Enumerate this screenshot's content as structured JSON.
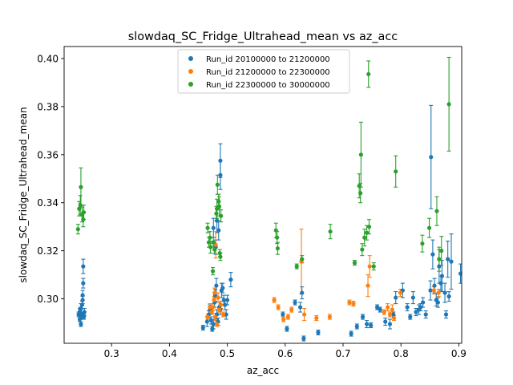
{
  "chart_data": {
    "type": "scatter",
    "title": "slowdaq_SC_Fridge_Ultrahead_mean vs az_acc",
    "xlabel": "az_acc",
    "ylabel": "slowdaq_SC_Fridge_Ultrahead_mean",
    "xlim": [
      0.218,
      0.905
    ],
    "ylim": [
      0.2815,
      0.405
    ],
    "xticks": [
      0.3,
      0.4,
      0.5,
      0.6,
      0.7,
      0.8,
      0.9
    ],
    "xtick_labels": [
      "0.3",
      "0.4",
      "0.5",
      "0.6",
      "0.7",
      "0.8",
      "0.9"
    ],
    "yticks": [
      0.3,
      0.32,
      0.34,
      0.36,
      0.38,
      0.4
    ],
    "ytick_labels": [
      "0.30",
      "0.32",
      "0.34",
      "0.36",
      "0.38",
      "0.40"
    ],
    "grid": false,
    "legend_placement": "top-center",
    "series": [
      {
        "name": "Run_id 20100000 to 21200000",
        "color": "#1f77b4",
        "points": [
          [
            0.243,
            0.2935,
            0.001
          ],
          [
            0.245,
            0.2945,
            0.0015
          ],
          [
            0.246,
            0.2955,
            0.001
          ],
          [
            0.247,
            0.296,
            0.002
          ],
          [
            0.248,
            0.2925,
            0.001
          ],
          [
            0.249,
            0.2935,
            0.001
          ],
          [
            0.249,
            0.2975,
            0.0015
          ],
          [
            0.25,
            0.2995,
            0.0015
          ],
          [
            0.25,
            0.3015,
            0.002
          ],
          [
            0.251,
            0.2935,
            0.001
          ],
          [
            0.247,
            0.2895,
            0.001
          ],
          [
            0.251,
            0.3065,
            0.002
          ],
          [
            0.251,
            0.3135,
            0.003
          ],
          [
            0.245,
            0.2915,
            0.001
          ],
          [
            0.252,
            0.2925,
            0.001
          ],
          [
            0.253,
            0.2945,
            0.0015
          ],
          [
            0.458,
            0.288,
            0.001
          ],
          [
            0.465,
            0.2905,
            0.002
          ],
          [
            0.468,
            0.2935,
            0.0015
          ],
          [
            0.47,
            0.2955,
            0.002
          ],
          [
            0.472,
            0.291,
            0.0015
          ],
          [
            0.474,
            0.2875,
            0.001
          ],
          [
            0.476,
            0.2895,
            0.002
          ],
          [
            0.478,
            0.2985,
            0.002
          ],
          [
            0.479,
            0.3015,
            0.0025
          ],
          [
            0.481,
            0.3055,
            0.003
          ],
          [
            0.482,
            0.2935,
            0.002
          ],
          [
            0.484,
            0.2905,
            0.0015
          ],
          [
            0.486,
            0.2965,
            0.002
          ],
          [
            0.488,
            0.2955,
            0.002
          ],
          [
            0.49,
            0.3035,
            0.003
          ],
          [
            0.492,
            0.3045,
            0.002
          ],
          [
            0.494,
            0.2995,
            0.002
          ],
          [
            0.496,
            0.2975,
            0.002
          ],
          [
            0.498,
            0.2935,
            0.002
          ],
          [
            0.485,
            0.3285,
            0.004
          ],
          [
            0.482,
            0.3325,
            0.005
          ],
          [
            0.488,
            0.3575,
            0.007
          ],
          [
            0.488,
            0.3515,
            0.006
          ],
          [
            0.48,
            0.3215,
            0.003
          ],
          [
            0.476,
            0.3295,
            0.004
          ],
          [
            0.506,
            0.308,
            0.003
          ],
          [
            0.5,
            0.2995,
            0.002
          ],
          [
            0.596,
            0.2935,
            0.001
          ],
          [
            0.603,
            0.2875,
            0.001
          ],
          [
            0.617,
            0.2985,
            0.001
          ],
          [
            0.626,
            0.2965,
            0.002
          ],
          [
            0.629,
            0.3025,
            0.0025
          ],
          [
            0.632,
            0.2835,
            0.001
          ],
          [
            0.657,
            0.286,
            0.001
          ],
          [
            0.714,
            0.2855,
            0.001
          ],
          [
            0.724,
            0.2885,
            0.001
          ],
          [
            0.734,
            0.2925,
            0.001
          ],
          [
            0.741,
            0.2895,
            0.0015
          ],
          [
            0.748,
            0.289,
            0.001
          ],
          [
            0.759,
            0.2965,
            0.001
          ],
          [
            0.764,
            0.2955,
            0.001
          ],
          [
            0.773,
            0.2905,
            0.0015
          ],
          [
            0.781,
            0.2895,
            0.002
          ],
          [
            0.787,
            0.2935,
            0.001
          ],
          [
            0.791,
            0.3005,
            0.0025
          ],
          [
            0.803,
            0.3035,
            0.003
          ],
          [
            0.811,
            0.2965,
            0.0015
          ],
          [
            0.816,
            0.2925,
            0.001
          ],
          [
            0.821,
            0.3005,
            0.0025
          ],
          [
            0.826,
            0.2945,
            0.0015
          ],
          [
            0.831,
            0.2955,
            0.002
          ],
          [
            0.834,
            0.2965,
            0.0015
          ],
          [
            0.838,
            0.2985,
            0.002
          ],
          [
            0.843,
            0.2935,
            0.0015
          ],
          [
            0.851,
            0.3035,
            0.004
          ],
          [
            0.852,
            0.359,
            0.0215
          ],
          [
            0.855,
            0.3185,
            0.006
          ],
          [
            0.861,
            0.2995,
            0.0025
          ],
          [
            0.864,
            0.2985,
            0.002
          ],
          [
            0.866,
            0.3135,
            0.007
          ],
          [
            0.871,
            0.3095,
            0.0065
          ],
          [
            0.876,
            0.3025,
            0.004
          ],
          [
            0.878,
            0.2935,
            0.0015
          ],
          [
            0.881,
            0.3165,
            0.0075
          ],
          [
            0.883,
            0.301,
            0.002
          ],
          [
            0.887,
            0.3155,
            0.0115
          ],
          [
            0.903,
            0.3105,
            0.004
          ],
          [
            0.869,
            0.3065,
            0.003
          ],
          [
            0.858,
            0.3055,
            0.003
          ]
        ]
      },
      {
        "name": "Run_id 21200000 to 22300000",
        "color": "#ff7f0e",
        "points": [
          [
            0.466,
            0.2925,
            0.001
          ],
          [
            0.47,
            0.2965,
            0.0015
          ],
          [
            0.473,
            0.2945,
            0.001
          ],
          [
            0.475,
            0.2965,
            0.0015
          ],
          [
            0.477,
            0.2995,
            0.0015
          ],
          [
            0.478,
            0.3025,
            0.002
          ],
          [
            0.48,
            0.3225,
            0.0055
          ],
          [
            0.479,
            0.2925,
            0.0015
          ],
          [
            0.482,
            0.2895,
            0.001
          ],
          [
            0.484,
            0.3005,
            0.002
          ],
          [
            0.486,
            0.2955,
            0.001
          ],
          [
            0.489,
            0.2975,
            0.0015
          ],
          [
            0.493,
            0.2935,
            0.001
          ],
          [
            0.581,
            0.2995,
            0.001
          ],
          [
            0.588,
            0.2965,
            0.001
          ],
          [
            0.597,
            0.2915,
            0.001
          ],
          [
            0.605,
            0.2925,
            0.001
          ],
          [
            0.611,
            0.2955,
            0.001
          ],
          [
            0.628,
            0.3155,
            0.0135
          ],
          [
            0.633,
            0.2935,
            0.0025
          ],
          [
            0.654,
            0.292,
            0.001
          ],
          [
            0.677,
            0.2925,
            0.001
          ],
          [
            0.711,
            0.2985,
            0.001
          ],
          [
            0.718,
            0.298,
            0.001
          ],
          [
            0.743,
            0.3055,
            0.0045
          ],
          [
            0.746,
            0.3135,
            0.0045
          ],
          [
            0.771,
            0.2945,
            0.001
          ],
          [
            0.777,
            0.2965,
            0.0015
          ],
          [
            0.781,
            0.2935,
            0.001
          ],
          [
            0.785,
            0.2955,
            0.002
          ],
          [
            0.788,
            0.292,
            0.001
          ],
          [
            0.799,
            0.3025,
            0.0015
          ],
          [
            0.857,
            0.3035,
            0.0015
          ],
          [
            0.865,
            0.3025,
            0.0015
          ]
        ]
      },
      {
        "name": "Run_id 22300000 to 30000000",
        "color": "#2ca02c",
        "points": [
          [
            0.242,
            0.329,
            0.002
          ],
          [
            0.244,
            0.3375,
            0.003
          ],
          [
            0.246,
            0.339,
            0.004
          ],
          [
            0.247,
            0.3465,
            0.008
          ],
          [
            0.249,
            0.335,
            0.003
          ],
          [
            0.251,
            0.333,
            0.003
          ],
          [
            0.252,
            0.336,
            0.003
          ],
          [
            0.466,
            0.3295,
            0.002
          ],
          [
            0.47,
            0.3255,
            0.0025
          ],
          [
            0.471,
            0.3215,
            0.0025
          ],
          [
            0.475,
            0.3115,
            0.0015
          ],
          [
            0.476,
            0.3235,
            0.002
          ],
          [
            0.478,
            0.3205,
            0.0015
          ],
          [
            0.481,
            0.3355,
            0.003
          ],
          [
            0.482,
            0.3375,
            0.004
          ],
          [
            0.483,
            0.3475,
            0.004
          ],
          [
            0.485,
            0.3405,
            0.003
          ],
          [
            0.486,
            0.3385,
            0.004
          ],
          [
            0.487,
            0.319,
            0.0015
          ],
          [
            0.488,
            0.3175,
            0.0015
          ],
          [
            0.489,
            0.3345,
            0.0025
          ],
          [
            0.468,
            0.3235,
            0.002
          ],
          [
            0.584,
            0.3285,
            0.003
          ],
          [
            0.586,
            0.3255,
            0.0025
          ],
          [
            0.587,
            0.321,
            0.0025
          ],
          [
            0.62,
            0.3135,
            0.001
          ],
          [
            0.629,
            0.3165,
            0.0015
          ],
          [
            0.678,
            0.328,
            0.003
          ],
          [
            0.72,
            0.315,
            0.001
          ],
          [
            0.728,
            0.347,
            0.005
          ],
          [
            0.73,
            0.344,
            0.004
          ],
          [
            0.731,
            0.36,
            0.0135
          ],
          [
            0.733,
            0.3205,
            0.0025
          ],
          [
            0.737,
            0.3255,
            0.0035
          ],
          [
            0.741,
            0.3275,
            0.003
          ],
          [
            0.744,
            0.3935,
            0.0055
          ],
          [
            0.745,
            0.33,
            0.003
          ],
          [
            0.753,
            0.3135,
            0.0015
          ],
          [
            0.791,
            0.353,
            0.0065
          ],
          [
            0.837,
            0.323,
            0.0035
          ],
          [
            0.849,
            0.3295,
            0.004
          ],
          [
            0.862,
            0.3365,
            0.006
          ],
          [
            0.866,
            0.3165,
            0.005
          ],
          [
            0.87,
            0.32,
            0.006
          ],
          [
            0.883,
            0.381,
            0.0195
          ]
        ]
      }
    ]
  }
}
